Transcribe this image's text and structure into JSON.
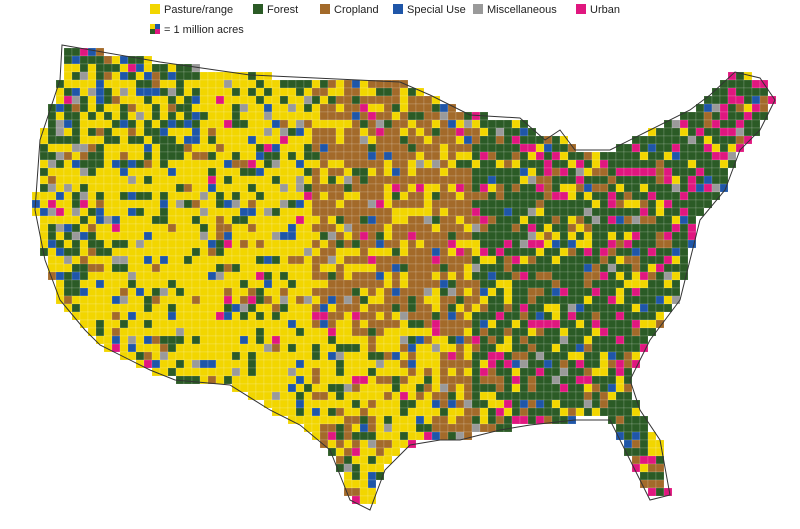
{
  "legend": {
    "items": [
      {
        "label": "Pasture/range",
        "color": "#f2d600"
      },
      {
        "label": "Forest",
        "color": "#2b5b26"
      },
      {
        "label": "Cropland",
        "color": "#a36a2a"
      },
      {
        "label": "Special Use",
        "color": "#1f56a8"
      },
      {
        "label": "Miscellaneous",
        "color": "#9a9a9a"
      },
      {
        "label": "Urban",
        "color": "#e0177f"
      }
    ],
    "scale_note": "= 1 million acres"
  }
}
